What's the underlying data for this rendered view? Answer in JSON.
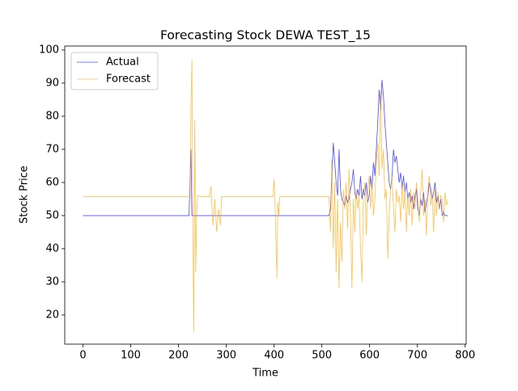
{
  "chart_data": {
    "type": "line",
    "title": "Forecasting Stock DEWA TEST_15",
    "xlabel": "Time",
    "ylabel": "Stock Price",
    "x": [
      0,
      220,
      222,
      224,
      226,
      228,
      230,
      232,
      234,
      236,
      238,
      240,
      250,
      265,
      268,
      272,
      276,
      280,
      284,
      288,
      290,
      398,
      400,
      402,
      404,
      406,
      408,
      410,
      412,
      515,
      518,
      521,
      524,
      527,
      530,
      533,
      536,
      539,
      542,
      545,
      548,
      551,
      554,
      557,
      560,
      563,
      566,
      569,
      572,
      575,
      578,
      581,
      584,
      587,
      590,
      593,
      596,
      599,
      602,
      605,
      608,
      611,
      614,
      617,
      620,
      623,
      626,
      629,
      632,
      635,
      638,
      641,
      644,
      647,
      650,
      653,
      656,
      659,
      662,
      665,
      668,
      671,
      674,
      677,
      680,
      683,
      686,
      689,
      692,
      695,
      698,
      701,
      704,
      707,
      710,
      713,
      716,
      719,
      722,
      725,
      728,
      731,
      734,
      737,
      740,
      743,
      746,
      749,
      752,
      755,
      758,
      761,
      764
    ],
    "series": [
      {
        "name": "Actual",
        "color": "#0000ff",
        "values": [
          50,
          50,
          50,
          60,
          70,
          50,
          50,
          50,
          50,
          50,
          50,
          50,
          50,
          50,
          50,
          50,
          50,
          50,
          50,
          50,
          50,
          50,
          50,
          50,
          50,
          50,
          50,
          50,
          50,
          50,
          52,
          62,
          72,
          66,
          60,
          56,
          70,
          58,
          55,
          54,
          53,
          56,
          54,
          55,
          58,
          60,
          64,
          57,
          55,
          58,
          56,
          62,
          55,
          58,
          56,
          60,
          54,
          56,
          62,
          58,
          66,
          62,
          70,
          78,
          88,
          82,
          91,
          86,
          78,
          72,
          66,
          60,
          58,
          62,
          70,
          66,
          68,
          64,
          60,
          63,
          58,
          62,
          57,
          60,
          55,
          57,
          54,
          56,
          52,
          56,
          58,
          52,
          50,
          55,
          53,
          57,
          51,
          54,
          56,
          60,
          58,
          55,
          57,
          60,
          54,
          56,
          52,
          55,
          50,
          51,
          50,
          50,
          50
        ]
      },
      {
        "name": "Forecast",
        "color": "#ffa500",
        "values": [
          55.7,
          55.7,
          55.5,
          56,
          83,
          97,
          45,
          15,
          79,
          33,
          50,
          56,
          55.7,
          55.7,
          59,
          47,
          55,
          45,
          52,
          47,
          55.7,
          55.7,
          61,
          54,
          42,
          31,
          54,
          50,
          55.7,
          55.7,
          45,
          67,
          40,
          60,
          33,
          55,
          28,
          48,
          36,
          58,
          52,
          60,
          46,
          64,
          50,
          28,
          55,
          45,
          58,
          52,
          56,
          40,
          30,
          56,
          60,
          44,
          58,
          62,
          52,
          60,
          50,
          55,
          66,
          72,
          62,
          88,
          64,
          70,
          55,
          58,
          37,
          50,
          58,
          62,
          52,
          45,
          58,
          54,
          56,
          48,
          60,
          52,
          58,
          45,
          56,
          50,
          58,
          47,
          57,
          52,
          60,
          55,
          48,
          57,
          64,
          50,
          55,
          44,
          58,
          62,
          53,
          56,
          45,
          58,
          50,
          57,
          52,
          56,
          55,
          48,
          57,
          53,
          55
        ]
      }
    ],
    "xlim": [
      -38.2,
      802.2
    ],
    "ylim": [
      11.2,
      101.2
    ],
    "xticks": [
      0,
      100,
      200,
      300,
      400,
      500,
      600,
      700,
      800
    ],
    "yticks": [
      20,
      30,
      40,
      50,
      60,
      70,
      80,
      90,
      100
    ],
    "legend": "upper left"
  }
}
